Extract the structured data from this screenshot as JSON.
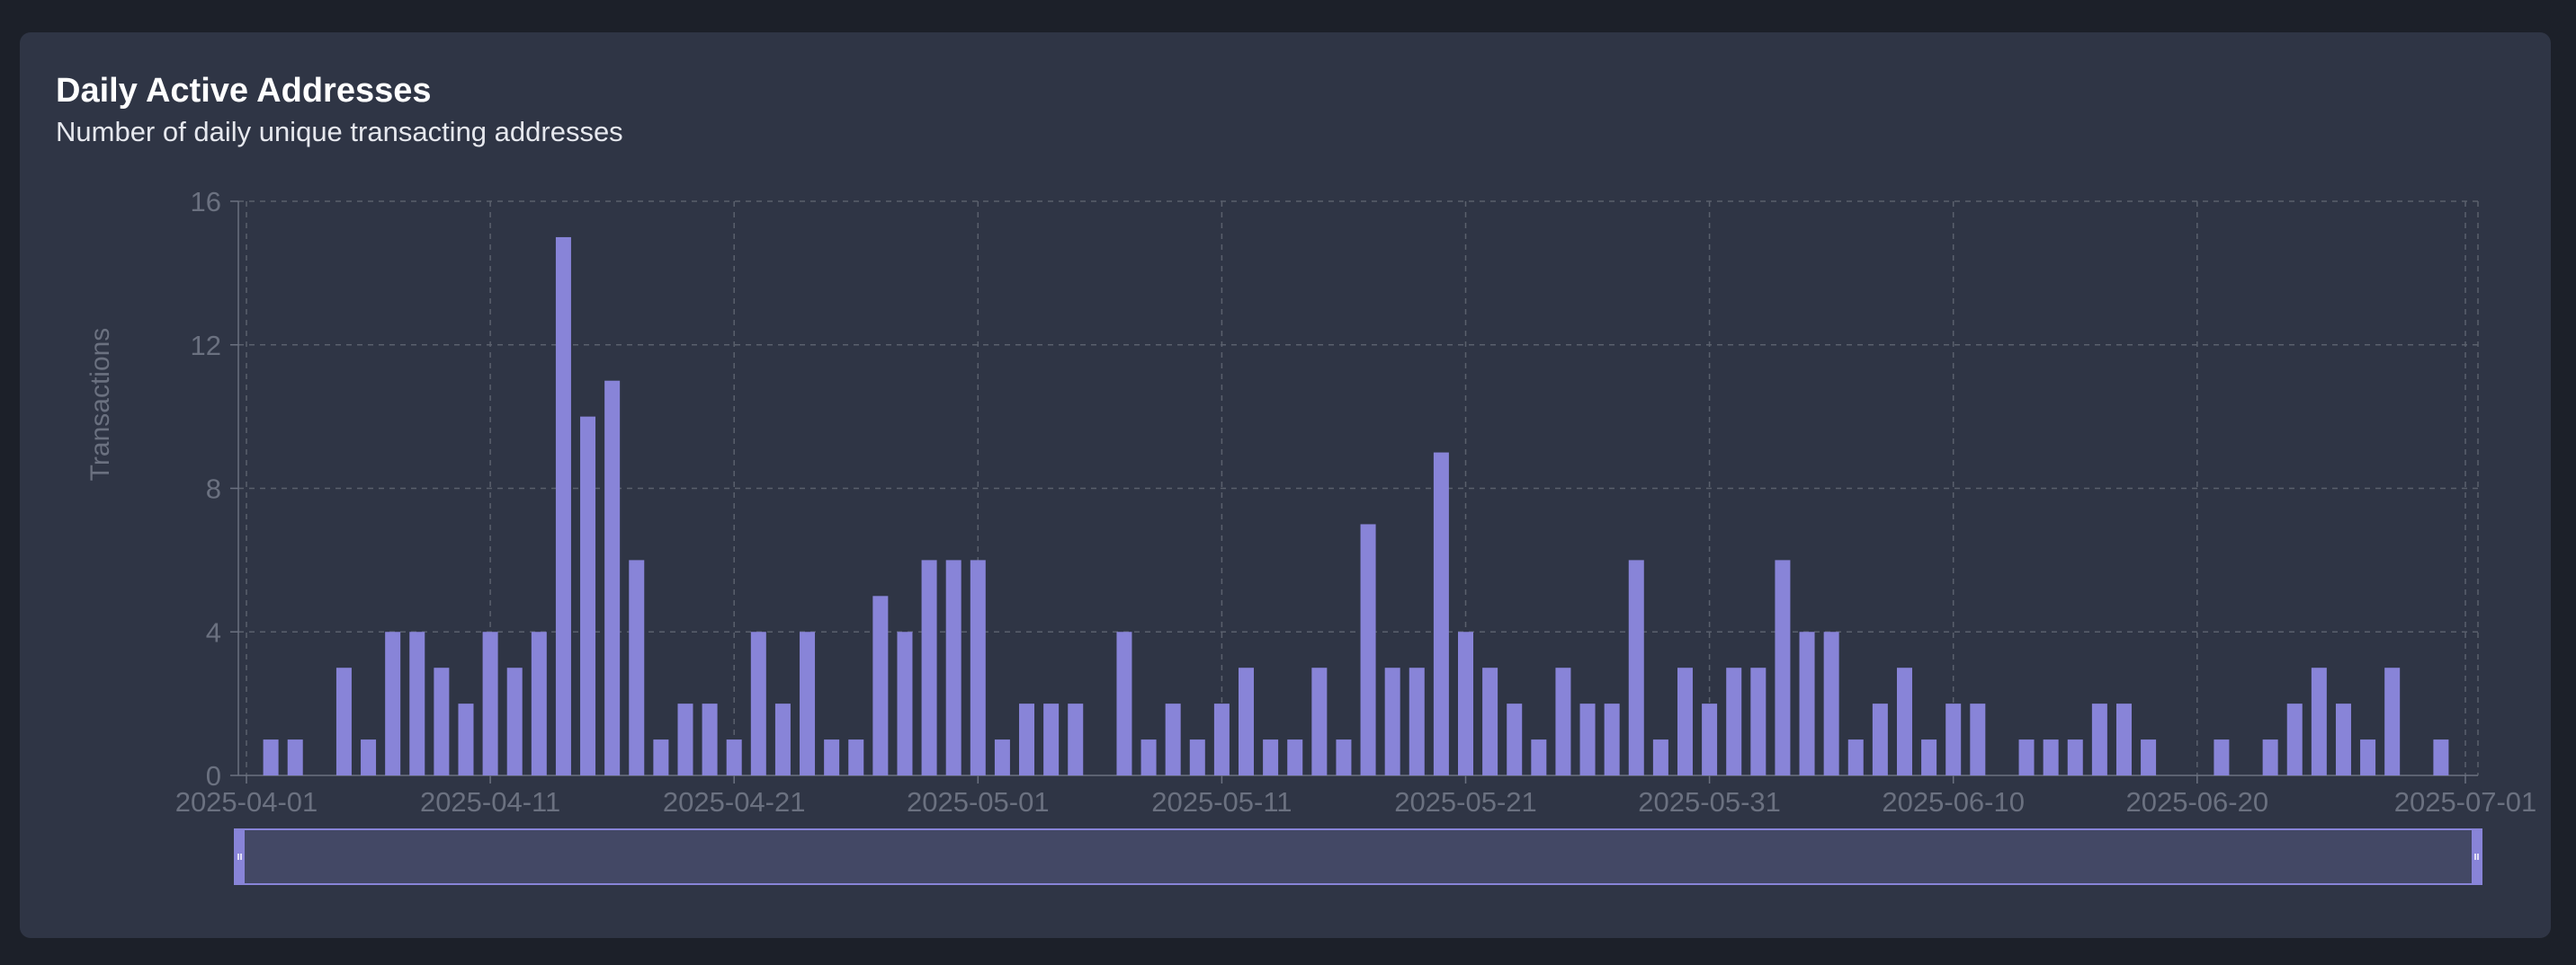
{
  "header": {
    "title": "Daily Active Addresses",
    "subtitle": "Number of daily unique transacting addresses"
  },
  "colors": {
    "page_background": "#1c2029",
    "card_background": "#2f3545",
    "bar": "#8884d8",
    "grid": "#5a606d",
    "tick_text": "#6b7180",
    "slider_fill": "#434865"
  },
  "chart_data": {
    "type": "bar",
    "ylabel": "Transactions",
    "ylim": [
      0,
      16
    ],
    "yticks": [
      0,
      4,
      8,
      12,
      16
    ],
    "xticks": [
      "2025-04-01",
      "2025-04-11",
      "2025-04-21",
      "2025-05-01",
      "2025-05-11",
      "2025-05-21",
      "2025-05-31",
      "2025-06-10",
      "2025-06-20",
      "2025-07-01"
    ],
    "grid": true,
    "brush": true,
    "start_date": "2025-04-01",
    "values": [
      0,
      1,
      1,
      0,
      3,
      1,
      4,
      4,
      3,
      2,
      4,
      3,
      4,
      15,
      10,
      11,
      6,
      1,
      2,
      2,
      1,
      4,
      2,
      4,
      1,
      1,
      5,
      4,
      6,
      6,
      6,
      1,
      2,
      2,
      2,
      0,
      4,
      1,
      2,
      1,
      2,
      3,
      1,
      1,
      3,
      1,
      7,
      3,
      3,
      9,
      4,
      3,
      2,
      1,
      3,
      2,
      2,
      6,
      1,
      3,
      2,
      3,
      3,
      6,
      4,
      4,
      1,
      2,
      3,
      1,
      2,
      2,
      0,
      1,
      1,
      1,
      2,
      2,
      1,
      0,
      0,
      1,
      0,
      1,
      2,
      3,
      2,
      1,
      3,
      0,
      1
    ]
  }
}
